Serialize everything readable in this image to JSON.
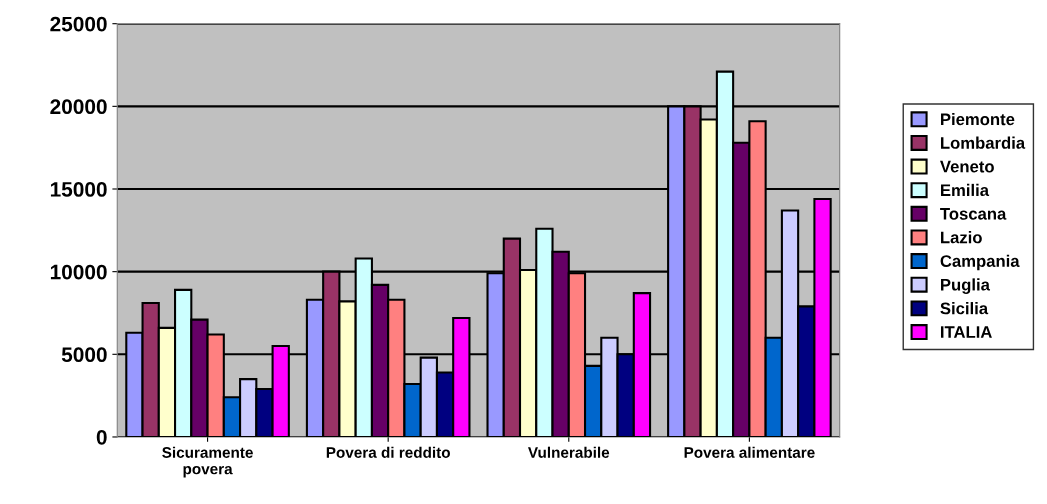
{
  "chart_data": {
    "type": "bar",
    "categories": [
      "Sicuramente\npovera",
      "Povera di reddito",
      "Vulnerabile",
      "Povera alimentare"
    ],
    "series": [
      {
        "name": "Piemonte",
        "color": "#9999ff",
        "values": [
          6300,
          8300,
          9900,
          20000
        ]
      },
      {
        "name": "Lombardia",
        "color": "#993366",
        "values": [
          8100,
          10000,
          12000,
          20000
        ]
      },
      {
        "name": "Veneto",
        "color": "#ffffcc",
        "values": [
          6600,
          8200,
          10100,
          19200
        ]
      },
      {
        "name": "Emilia",
        "color": "#ccffff",
        "values": [
          8900,
          10800,
          12600,
          22100
        ]
      },
      {
        "name": "Toscana",
        "color": "#660066",
        "values": [
          7100,
          9200,
          11200,
          17800
        ]
      },
      {
        "name": "Lazio",
        "color": "#ff8080",
        "values": [
          6200,
          8300,
          9900,
          19100
        ]
      },
      {
        "name": "Campania",
        "color": "#0066cc",
        "values": [
          2400,
          3200,
          4300,
          6000
        ]
      },
      {
        "name": "Puglia",
        "color": "#ccccff",
        "values": [
          3500,
          4800,
          6000,
          13700
        ]
      },
      {
        "name": "Sicilia",
        "color": "#000080",
        "values": [
          2900,
          3900,
          5000,
          7900
        ]
      },
      {
        "name": "ITALIA",
        "color": "#ff00ff",
        "values": [
          5500,
          7200,
          8700,
          14400
        ]
      }
    ],
    "ylim": [
      0,
      25000
    ],
    "yticks": [
      0,
      5000,
      10000,
      15000,
      20000,
      25000
    ],
    "grid": "y",
    "legend": "right"
  }
}
